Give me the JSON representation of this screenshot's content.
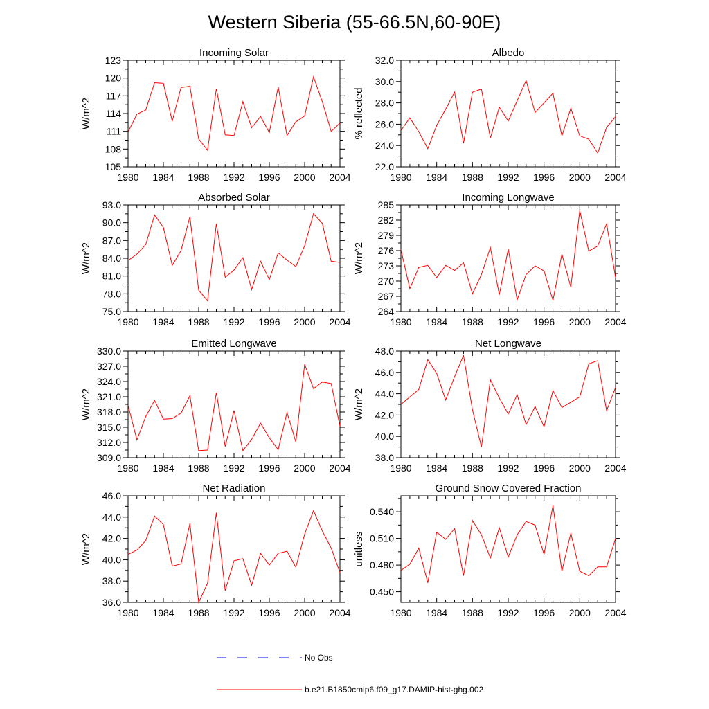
{
  "title": "Western Siberia (55-66.5N,60-90E)",
  "colors": {
    "model": "#ff0000",
    "obs": "#0000ff",
    "axis": "#000000"
  },
  "legend": [
    {
      "label": "No Obs",
      "style": "dashed",
      "color": "#0000ff"
    },
    {
      "label": "b.e21.B1850cmip6.f09_g17.DAMIP-hist-ghg.002",
      "style": "solid",
      "color": "#ff0000"
    }
  ],
  "chart_data": [
    {
      "type": "line",
      "title": "Incoming Solar",
      "ylabel": "W/m^2",
      "xlim": [
        1980,
        2004
      ],
      "ylim": [
        105,
        123
      ],
      "yticks": [
        "123",
        "120",
        "117",
        "114",
        "111",
        "108",
        "105"
      ],
      "xticks": [
        "1980",
        "1984",
        "1988",
        "1992",
        "1996",
        "2000",
        "2004"
      ],
      "x": [
        1980,
        1981,
        1982,
        1983,
        1984,
        1985,
        1986,
        1987,
        1988,
        1989,
        1990,
        1991,
        1992,
        1993,
        1994,
        1995,
        1996,
        1997,
        1998,
        1999,
        2000,
        2001,
        2002,
        2003,
        2004
      ],
      "series": [
        {
          "values": [
            110.9,
            113.9,
            114.6,
            119.2,
            119.1,
            112.7,
            118.4,
            118.6,
            109.7,
            107.8,
            118.2,
            110.4,
            110.3,
            116.0,
            111.6,
            113.5,
            110.8,
            118.5,
            110.3,
            112.6,
            113.6,
            120.2,
            116.0,
            111.0,
            112.4
          ]
        }
      ]
    },
    {
      "type": "line",
      "title": "Albedo",
      "ylabel": "% reflected",
      "xlim": [
        1980,
        2004
      ],
      "ylim": [
        22.0,
        32.0
      ],
      "yticks": [
        "32.0",
        "30.0",
        "28.0",
        "26.0",
        "24.0",
        "22.0"
      ],
      "xticks": [
        "1980",
        "1984",
        "1988",
        "1992",
        "1996",
        "2000",
        "2004"
      ],
      "x": [
        1980,
        1981,
        1982,
        1983,
        1984,
        1985,
        1986,
        1987,
        1988,
        1989,
        1990,
        1991,
        1992,
        1993,
        1994,
        1995,
        1996,
        1997,
        1998,
        1999,
        2000,
        2001,
        2002,
        2003,
        2004
      ],
      "series": [
        {
          "values": [
            25.4,
            26.6,
            25.3,
            23.7,
            25.9,
            27.4,
            29.0,
            24.2,
            29.0,
            29.3,
            24.7,
            27.6,
            26.3,
            28.2,
            30.1,
            27.1,
            28.0,
            28.9,
            24.9,
            27.5,
            24.9,
            24.6,
            23.3,
            25.7,
            26.7
          ]
        }
      ]
    },
    {
      "type": "line",
      "title": "Absorbed Solar",
      "ylabel": "W/m^2",
      "xlim": [
        1980,
        2004
      ],
      "ylim": [
        75.0,
        93.0
      ],
      "yticks": [
        "93.0",
        "90.0",
        "87.0",
        "84.0",
        "81.0",
        "78.0",
        "75.0"
      ],
      "xticks": [
        "1980",
        "1984",
        "1988",
        "1992",
        "1996",
        "2000",
        "2004"
      ],
      "x": [
        1980,
        1981,
        1982,
        1983,
        1984,
        1985,
        1986,
        1987,
        1988,
        1989,
        1990,
        1991,
        1992,
        1993,
        1994,
        1995,
        1996,
        1997,
        1998,
        1999,
        2000,
        2001,
        2002,
        2003,
        2004
      ],
      "series": [
        {
          "values": [
            83.6,
            84.7,
            86.3,
            91.3,
            89.2,
            82.8,
            85.3,
            91.0,
            78.6,
            76.8,
            89.8,
            80.8,
            82.0,
            84.1,
            78.7,
            83.5,
            80.4,
            84.9,
            83.7,
            82.6,
            86.1,
            91.5,
            89.9,
            83.5,
            83.3
          ]
        }
      ]
    },
    {
      "type": "line",
      "title": "Incoming Longwave",
      "ylabel": "W/m^2",
      "xlim": [
        1980,
        2004
      ],
      "ylim": [
        264,
        285
      ],
      "yticks": [
        "285",
        "282",
        "279",
        "276",
        "273",
        "270",
        "267",
        "264"
      ],
      "xticks": [
        "1980",
        "1984",
        "1988",
        "1992",
        "1996",
        "2000",
        "2004"
      ],
      "x": [
        1980,
        1981,
        1982,
        1983,
        1984,
        1985,
        1986,
        1987,
        1988,
        1989,
        1990,
        1991,
        1992,
        1993,
        1994,
        1995,
        1996,
        1997,
        1998,
        1999,
        2000,
        2001,
        2002,
        2003,
        2004
      ],
      "series": [
        {
          "values": [
            276.2,
            268.5,
            272.7,
            273.1,
            270.7,
            273.1,
            272.1,
            273.6,
            267.5,
            271.3,
            276.6,
            267.3,
            276.3,
            266.3,
            271.3,
            273.0,
            272.0,
            266.2,
            275.3,
            268.8,
            283.9,
            275.9,
            276.9,
            281.3,
            270.7
          ]
        }
      ]
    },
    {
      "type": "line",
      "title": "Emitted Longwave",
      "ylabel": "W/m^2",
      "xlim": [
        1980,
        2004
      ],
      "ylim": [
        309.0,
        330.0
      ],
      "yticks": [
        "330.0",
        "327.0",
        "324.0",
        "321.0",
        "318.0",
        "315.0",
        "312.0",
        "309.0"
      ],
      "xticks": [
        "1980",
        "1984",
        "1988",
        "1992",
        "1996",
        "2000",
        "2004"
      ],
      "x": [
        1980,
        1981,
        1982,
        1983,
        1984,
        1985,
        1986,
        1987,
        1988,
        1989,
        1990,
        1991,
        1992,
        1993,
        1994,
        1995,
        1996,
        1997,
        1998,
        1999,
        2000,
        2001,
        2002,
        2003,
        2004
      ],
      "series": [
        {
          "values": [
            319.3,
            312.5,
            317.1,
            320.3,
            316.6,
            316.7,
            317.8,
            321.2,
            310.4,
            310.5,
            321.8,
            311.2,
            318.3,
            310.4,
            312.6,
            315.8,
            312.9,
            310.6,
            317.9,
            312.1,
            327.4,
            322.6,
            323.9,
            323.6,
            315.2
          ]
        }
      ]
    },
    {
      "type": "line",
      "title": "Net Longwave",
      "ylabel": "W/m^2",
      "xlim": [
        1980,
        2004
      ],
      "ylim": [
        38.0,
        48.0
      ],
      "yticks": [
        "48.0",
        "46.0",
        "44.0",
        "42.0",
        "40.0",
        "38.0"
      ],
      "xticks": [
        "1980",
        "1984",
        "1988",
        "1992",
        "1996",
        "2000",
        "2004"
      ],
      "x": [
        1980,
        1981,
        1982,
        1983,
        1984,
        1985,
        1986,
        1987,
        1988,
        1989,
        1990,
        1991,
        1992,
        1993,
        1994,
        1995,
        1996,
        1997,
        1998,
        1999,
        2000,
        2001,
        2002,
        2003,
        2004
      ],
      "series": [
        {
          "values": [
            43.0,
            43.7,
            44.4,
            47.2,
            45.9,
            43.4,
            45.6,
            47.6,
            42.5,
            39.0,
            45.3,
            43.6,
            42.1,
            43.9,
            41.1,
            42.8,
            40.9,
            44.3,
            42.7,
            43.2,
            43.7,
            46.8,
            47.1,
            42.4,
            44.6
          ]
        }
      ]
    },
    {
      "type": "line",
      "title": "Net Radiation",
      "ylabel": "W/m^2",
      "xlim": [
        1980,
        2004
      ],
      "ylim": [
        36.0,
        46.0
      ],
      "yticks": [
        "46.0",
        "44.0",
        "42.0",
        "40.0",
        "38.0",
        "36.0"
      ],
      "xticks": [
        "1980",
        "1984",
        "1988",
        "1992",
        "1996",
        "2000",
        "2004"
      ],
      "x": [
        1980,
        1981,
        1982,
        1983,
        1984,
        1985,
        1986,
        1987,
        1988,
        1989,
        1990,
        1991,
        1992,
        1993,
        1994,
        1995,
        1996,
        1997,
        1998,
        1999,
        2000,
        2001,
        2002,
        2003,
        2004
      ],
      "series": [
        {
          "values": [
            40.5,
            40.9,
            41.8,
            44.1,
            43.3,
            39.4,
            39.6,
            43.4,
            36.0,
            37.8,
            44.4,
            37.1,
            39.9,
            40.1,
            37.6,
            40.6,
            39.5,
            40.6,
            40.8,
            39.3,
            42.4,
            44.6,
            42.7,
            41.1,
            38.8
          ]
        }
      ]
    },
    {
      "type": "line",
      "title": "Ground Snow Covered Fraction",
      "ylabel": "unitless",
      "xlim": [
        1980,
        2004
      ],
      "ylim": [
        0.438,
        0.558
      ],
      "yticks": [
        "0.540",
        "0.510",
        "0.480",
        "0.450"
      ],
      "xticks": [
        "1980",
        "1984",
        "1988",
        "1992",
        "1996",
        "2000",
        "2004"
      ],
      "x": [
        1980,
        1981,
        1982,
        1983,
        1984,
        1985,
        1986,
        1987,
        1988,
        1989,
        1990,
        1991,
        1992,
        1993,
        1994,
        1995,
        1996,
        1997,
        1998,
        1999,
        2000,
        2001,
        2002,
        2003,
        2004
      ],
      "series": [
        {
          "values": [
            0.474,
            0.481,
            0.499,
            0.46,
            0.517,
            0.509,
            0.521,
            0.468,
            0.53,
            0.514,
            0.488,
            0.522,
            0.489,
            0.514,
            0.529,
            0.525,
            0.492,
            0.547,
            0.473,
            0.516,
            0.473,
            0.468,
            0.478,
            0.478,
            0.51
          ]
        }
      ]
    }
  ]
}
